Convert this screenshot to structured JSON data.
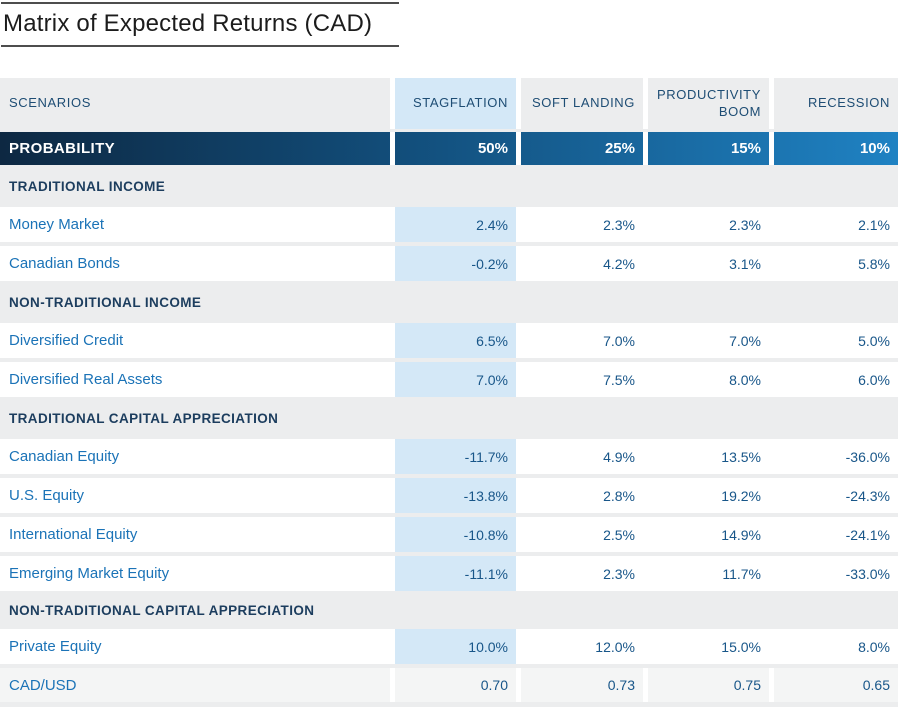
{
  "title": "Matrix of Expected Returns (CAD)",
  "chart_data": {
    "type": "table",
    "title": "Matrix of Expected Returns (CAD)",
    "columns": [
      "SCENARIOS",
      "STAGFLATION",
      "SOFT LANDING",
      "PRODUCTIVITY BOOM",
      "RECESSION"
    ],
    "probability_row": {
      "label": "PROBABILITY",
      "values": [
        "50%",
        "25%",
        "15%",
        "10%"
      ]
    },
    "sections": [
      {
        "label": "TRADITIONAL INCOME",
        "rows": [
          {
            "label": "Money Market",
            "values": [
              "2.4%",
              "2.3%",
              "2.3%",
              "2.1%"
            ]
          },
          {
            "label": "Canadian Bonds",
            "values": [
              "-0.2%",
              "4.2%",
              "3.1%",
              "5.8%"
            ]
          }
        ]
      },
      {
        "label": "NON-TRADITIONAL INCOME",
        "rows": [
          {
            "label": "Diversified Credit",
            "values": [
              "6.5%",
              "7.0%",
              "7.0%",
              "5.0%"
            ]
          },
          {
            "label": "Diversified Real Assets",
            "values": [
              "7.0%",
              "7.5%",
              "8.0%",
              "6.0%"
            ]
          }
        ]
      },
      {
        "label": "TRADITIONAL CAPITAL APPRECIATION",
        "rows": [
          {
            "label": "Canadian Equity",
            "values": [
              "-11.7%",
              "4.9%",
              "13.5%",
              "-36.0%"
            ]
          },
          {
            "label": "U.S. Equity",
            "values": [
              "-13.8%",
              "2.8%",
              "19.2%",
              "-24.3%"
            ]
          },
          {
            "label": "International Equity",
            "values": [
              "-10.8%",
              "2.5%",
              "14.9%",
              "-24.1%"
            ]
          },
          {
            "label": "Emerging Market Equity",
            "values": [
              "-11.1%",
              "2.3%",
              "11.7%",
              "-33.0%"
            ]
          }
        ]
      },
      {
        "label": "NON-TRADITIONAL CAPITAL APPRECIATION",
        "rows": [
          {
            "label": "Private Equity",
            "values": [
              "10.0%",
              "12.0%",
              "15.0%",
              "8.0%"
            ]
          },
          {
            "label": "CAD/USD",
            "values": [
              "0.70",
              "0.73",
              "0.75",
              "0.65"
            ]
          }
        ]
      }
    ],
    "layout_hints": {
      "highlighted_column": "STAGFLATION",
      "probability_row_style": "blue gradient dark-to-light left-to-right"
    }
  },
  "colors": {
    "table_background": "#ECEDEE",
    "highlight_column_blue": "#D4E8F7",
    "probability_gradient_start": "#0D2842",
    "probability_gradient_end": "#1F82C3",
    "header_text_navy": "#1E4D74",
    "section_text_navy": "#1C3D5E",
    "row_label_blue": "#1B73B7",
    "value_text_navy": "#185689",
    "muted_row_background": "#F4F5F5"
  }
}
